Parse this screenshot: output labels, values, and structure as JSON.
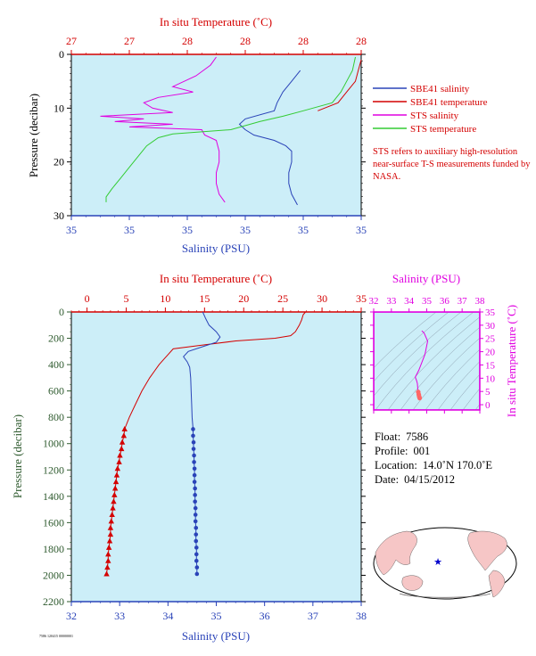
{
  "chart_data": [
    {
      "type": "line",
      "panel": "upper",
      "xlabel_top": "In situ Temperature (˚C)",
      "xlabel_bottom": "Salinity (PSU)",
      "ylabel": "Pressure (decibar)",
      "ylim": [
        30,
        0
      ],
      "yticks": [
        "0",
        "10",
        "20",
        "30"
      ],
      "top_ticks": [
        "27",
        "27",
        "28",
        "28",
        "28",
        "28"
      ],
      "bottom_ticks": [
        "35",
        "35",
        "35",
        "35",
        "35",
        "35"
      ],
      "temp_range": [
        27.0,
        28.0
      ],
      "sal_range": [
        34.2,
        35.2
      ],
      "grid": false,
      "legend_position": "right",
      "series": [
        {
          "name": "SBE41 salinity",
          "color": "#2a43b8",
          "axis": "salinity",
          "pressure": [
            3,
            5,
            7,
            9,
            10.5,
            12,
            13,
            14,
            15,
            16,
            17,
            18,
            20,
            22,
            24,
            26,
            28
          ],
          "values": [
            34.99,
            34.96,
            34.93,
            34.91,
            34.9,
            34.8,
            34.78,
            34.8,
            34.83,
            34.9,
            34.94,
            34.96,
            34.96,
            34.95,
            34.95,
            34.96,
            34.98
          ]
        },
        {
          "name": "SBE41 temperature",
          "color": "#d40000",
          "axis": "temperature",
          "pressure": [
            1,
            3,
            5,
            7,
            9,
            10.5
          ],
          "values": [
            28.0,
            27.99,
            27.98,
            27.95,
            27.92,
            27.85
          ]
        },
        {
          "name": "STS salinity",
          "color": "#e000e0",
          "axis": "salinity",
          "pressure": [
            0.5,
            2,
            4,
            6,
            7,
            8,
            9,
            10,
            10.8,
            11.5,
            12,
            12.5,
            13,
            13.5,
            14,
            15,
            16,
            18,
            20,
            22,
            24,
            26,
            27.5
          ],
          "values": [
            34.7,
            34.68,
            34.63,
            34.55,
            34.62,
            34.5,
            34.45,
            34.48,
            34.55,
            34.3,
            34.45,
            34.35,
            34.55,
            34.4,
            34.65,
            34.66,
            34.7,
            34.71,
            34.71,
            34.7,
            34.7,
            34.71,
            34.73
          ]
        },
        {
          "name": "STS temperature",
          "color": "#33cc33",
          "axis": "temperature",
          "pressure": [
            0.5,
            3,
            5,
            7,
            9,
            10.5,
            11.5,
            12.5,
            14,
            14.8,
            15.5,
            17,
            19,
            21,
            23,
            25,
            26.5,
            27.5
          ],
          "values": [
            27.98,
            27.97,
            27.95,
            27.93,
            27.9,
            27.8,
            27.73,
            27.65,
            27.55,
            27.35,
            27.3,
            27.26,
            27.23,
            27.2,
            27.17,
            27.14,
            27.12,
            27.12
          ]
        }
      ],
      "note": "STS refers to auxiliary high-resolution near-surface T-S measurements funded by NASA."
    },
    {
      "type": "line",
      "panel": "lower",
      "xlabel_top": "In situ Temperature (˚C)",
      "xlabel_bottom": "Salinity (PSU)",
      "ylabel": "Pressure (decibar)",
      "ylim": [
        2200,
        0
      ],
      "yticks": [
        0,
        200,
        400,
        600,
        800,
        1000,
        1200,
        1400,
        1600,
        1800,
        2000,
        2200
      ],
      "temp_ticks": [
        0,
        5,
        10,
        15,
        20,
        25,
        30,
        35
      ],
      "sal_ticks": [
        32,
        33,
        34,
        35,
        36,
        37,
        38
      ],
      "temp_range": [
        -2,
        35
      ],
      "sal_range": [
        32,
        38
      ],
      "grid": false,
      "series": [
        {
          "name": "temperature",
          "color": "#d40000",
          "marker": "triangle",
          "pressure": [
            0,
            20,
            60,
            100,
            150,
            180,
            200,
            220,
            250,
            280,
            320,
            360,
            400,
            450,
            500,
            600,
            700,
            800,
            890,
            940,
            990,
            1040,
            1090,
            1140,
            1190,
            1240,
            1290,
            1340,
            1390,
            1440,
            1490,
            1540,
            1590,
            1640,
            1690,
            1740,
            1790,
            1840,
            1890,
            1940,
            1990
          ],
          "values": [
            27.9,
            27.6,
            27.4,
            27.1,
            26.6,
            26.0,
            24.0,
            19.0,
            15.0,
            11.0,
            10.4,
            9.8,
            9.2,
            8.6,
            8.0,
            7.0,
            6.2,
            5.4,
            4.8,
            4.7,
            4.5,
            4.4,
            4.2,
            4.1,
            3.9,
            3.8,
            3.7,
            3.6,
            3.5,
            3.4,
            3.3,
            3.2,
            3.1,
            3.0,
            3.0,
            2.9,
            2.8,
            2.7,
            2.7,
            2.6,
            2.5
          ],
          "marker_from_index": 18
        },
        {
          "name": "salinity",
          "color": "#2a43b8",
          "marker": "circle",
          "pressure": [
            0,
            50,
            100,
            150,
            190,
            230,
            260,
            300,
            340,
            380,
            420,
            500,
            600,
            700,
            800,
            890,
            940,
            990,
            1040,
            1090,
            1140,
            1190,
            1240,
            1290,
            1340,
            1390,
            1440,
            1490,
            1540,
            1590,
            1640,
            1690,
            1740,
            1790,
            1840,
            1890,
            1940,
            1990
          ],
          "values": [
            34.72,
            34.78,
            34.85,
            35.0,
            35.08,
            35.0,
            34.75,
            34.42,
            34.32,
            34.4,
            34.45,
            34.47,
            34.48,
            34.49,
            34.5,
            34.52,
            34.52,
            34.53,
            34.53,
            34.54,
            34.54,
            34.55,
            34.55,
            34.55,
            34.56,
            34.56,
            34.56,
            34.57,
            34.57,
            34.57,
            34.58,
            34.58,
            34.58,
            34.59,
            34.59,
            34.59,
            34.6,
            34.6
          ],
          "marker_from_index": 15
        }
      ]
    },
    {
      "type": "scatter",
      "panel": "ts-diagram",
      "xlabel": "Salinity (PSU)",
      "ylabel": "In situ Temperature (˚C)",
      "xticks": [
        32,
        33,
        34,
        35,
        36,
        37,
        38
      ],
      "yticks": [
        0,
        5,
        10,
        15,
        20,
        25,
        30,
        35
      ],
      "xlim": [
        32,
        38
      ],
      "ylim": [
        -2,
        35
      ],
      "color": "#e000e0",
      "salinity": [
        34.72,
        34.85,
        35.05,
        34.9,
        34.55,
        34.35,
        34.42,
        34.47,
        34.49,
        34.52,
        34.55,
        34.57,
        34.6
      ],
      "temperature": [
        27.9,
        27.1,
        24.0,
        19.0,
        13.0,
        10.4,
        9.2,
        8.0,
        6.2,
        4.8,
        3.8,
        3.1,
        2.5
      ]
    }
  ],
  "info": {
    "float_label": "Float:",
    "float_value": "7586",
    "profile_label": "Profile:",
    "profile_value": "001",
    "location_label": "Location:",
    "location_value": "14.0˚N  170.0˚E",
    "date_label": "Date:",
    "date_value": "04/15/2012"
  },
  "note_text": "STS refers to auxiliary high-resolution near-surface T-S measurements funded by NASA.",
  "code_tag": "7586 120415 00000001",
  "colors": {
    "plot_bg": "#cceef8",
    "temp": "#d40000",
    "sal": "#2a43b8",
    "pressure_label": "#2e5a2e",
    "ts": "#e000e0",
    "map_land": "#f6c6c6",
    "map_ocean": "#ffffff",
    "float_marker": "#0000cc"
  }
}
